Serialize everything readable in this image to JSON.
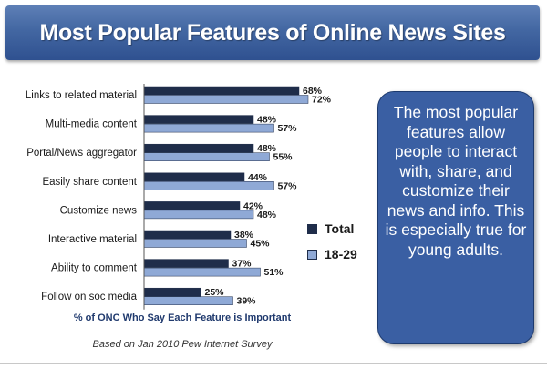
{
  "title": "Most Popular Features of Online News Sites",
  "chart_data": {
    "type": "bar",
    "orientation": "horizontal",
    "categories": [
      "Links to related material",
      "Multi-media content",
      "Portal/News aggregator",
      "Easily share content",
      "Customize news",
      "Interactive material",
      "Ability to comment",
      "Follow on soc media"
    ],
    "series": [
      {
        "name": "Total",
        "color": "#1f2d4a",
        "values": [
          68,
          48,
          48,
          44,
          42,
          38,
          37,
          25
        ]
      },
      {
        "name": "18-29",
        "color": "#8fa9d6",
        "values": [
          72,
          57,
          55,
          57,
          48,
          45,
          51,
          39
        ]
      }
    ],
    "value_suffix": "%",
    "xlim": [
      0,
      100
    ],
    "grid": false,
    "legend_position": "right",
    "xlabel": "% of ONC Who Say Each Feature is Important"
  },
  "legend": {
    "total": "Total",
    "age": "18-29"
  },
  "source": "Based on Jan 2010 Pew Internet Survey",
  "callout": "The most popular features allow people to interact with, share, and customize their news and info. This is especially true for young adults."
}
